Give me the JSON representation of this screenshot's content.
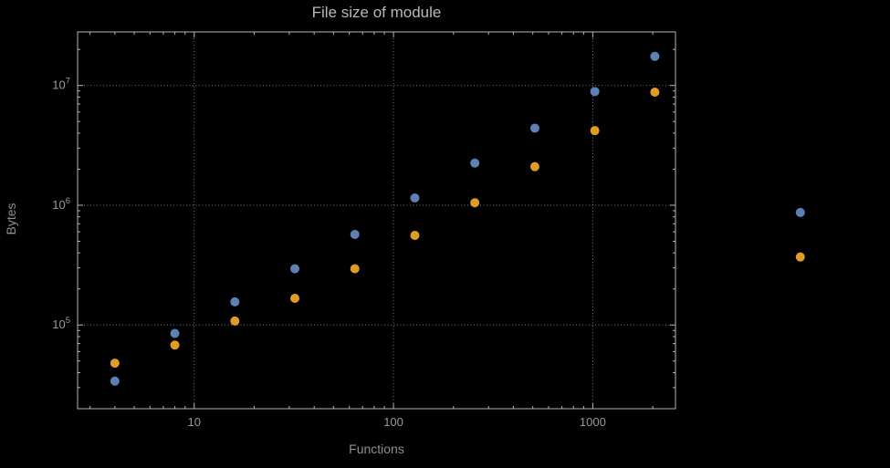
{
  "colors": {
    "background": "#000000",
    "frame": "#b4b4b4",
    "grid": "#7a7a7a",
    "tick_label": "#9a9a9a",
    "title": "#b8b8b8",
    "axis_label": "#8f8f8f"
  },
  "chart_data": {
    "type": "scatter",
    "title": "File size of module",
    "xlabel": "Functions",
    "ylabel": "Bytes",
    "x_scale": "log",
    "y_scale": "log",
    "grid": true,
    "legend": "none",
    "xlim": [
      2.6,
      2600
    ],
    "ylim": [
      20000,
      28000000
    ],
    "x_ticks": [
      {
        "value": 10,
        "label": "10"
      },
      {
        "value": 100,
        "label": "100"
      },
      {
        "value": 1000,
        "label": "1000"
      }
    ],
    "y_ticks": [
      {
        "value": 100000,
        "base": "10",
        "exp": "5"
      },
      {
        "value": 1000000,
        "base": "10",
        "exp": "6"
      },
      {
        "value": 10000000,
        "base": "10",
        "exp": "7"
      }
    ],
    "series": [
      {
        "name": "series-1",
        "color": "#5e81b5",
        "points": [
          [
            4,
            34000
          ],
          [
            8,
            85000
          ],
          [
            16,
            156000
          ],
          [
            32,
            295000
          ],
          [
            64,
            570000
          ],
          [
            128,
            1150000
          ],
          [
            256,
            2250000
          ],
          [
            512,
            4400000
          ],
          [
            1024,
            8900000
          ],
          [
            2048,
            17500000
          ],
          [
            11000,
            870000
          ]
        ]
      },
      {
        "name": "series-2",
        "color": "#e19c24",
        "points": [
          [
            4,
            48000
          ],
          [
            8,
            68000
          ],
          [
            16,
            108000
          ],
          [
            32,
            167000
          ],
          [
            64,
            295000
          ],
          [
            128,
            560000
          ],
          [
            256,
            1050000
          ],
          [
            512,
            2100000
          ],
          [
            1024,
            4200000
          ],
          [
            2048,
            8800000
          ],
          [
            11000,
            370000
          ]
        ]
      }
    ]
  }
}
